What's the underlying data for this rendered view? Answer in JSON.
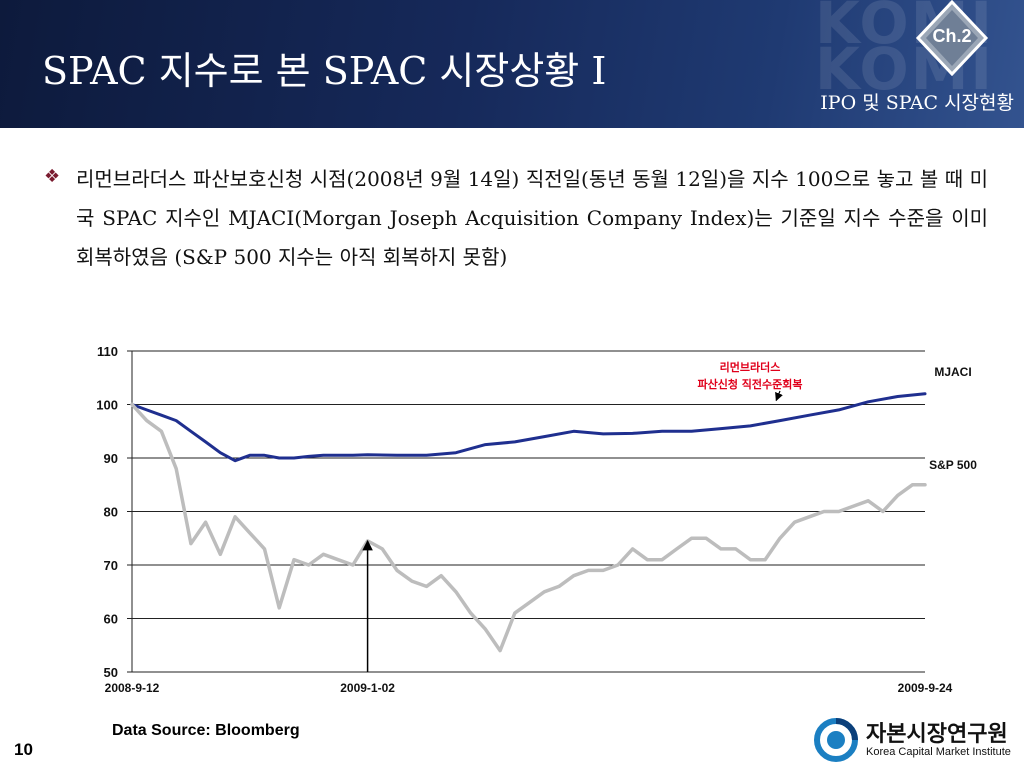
{
  "header": {
    "title": "SPAC 지수로 본 SPAC 시장상황 I",
    "subtitle": "IPO 및 SPAC 시장현황",
    "badge": "Ch.2"
  },
  "bullet": {
    "text": "리먼브라더스 파산보호신청 시점(2008년 9월 14일) 직전일(동년 동월 12일)을 지수 100으로 놓고 볼 때 미국 SPAC 지수인 MJACI(Morgan Joseph Acquisition Company Index)는 기준일 지수 수준을 이미 회복하였음 (S&P 500 지수는 아직 회복하지 못함)"
  },
  "chart_data": {
    "type": "line",
    "x_ticks": [
      "2008-9-12",
      "2009-1-02",
      "2009-9-24"
    ],
    "ylim": [
      50,
      110
    ],
    "y_ticks": [
      50,
      60,
      70,
      80,
      90,
      100,
      110
    ],
    "grid": true,
    "x_range": [
      "2008-09-12",
      "2009-09-24"
    ],
    "annotations": [
      {
        "text_line1": "리먼브라더스",
        "text_line2": "파산신청 직전수준회복",
        "color": "#e0001b",
        "points_to_x": "2009-07-01",
        "points_to_y": 100
      },
      {
        "text": "",
        "arrow_at_x": "2009-01-02",
        "arrow_to_y": 74.5
      }
    ],
    "series": [
      {
        "name": "MJACI",
        "color": "#1f2f8f",
        "points": [
          [
            "2008-09-12",
            100
          ],
          [
            "2008-09-19",
            99
          ],
          [
            "2008-09-26",
            98
          ],
          [
            "2008-10-03",
            97
          ],
          [
            "2008-10-10",
            95
          ],
          [
            "2008-10-17",
            93
          ],
          [
            "2008-10-24",
            91
          ],
          [
            "2008-10-31",
            89.5
          ],
          [
            "2008-11-07",
            90.5
          ],
          [
            "2008-11-14",
            90.5
          ],
          [
            "2008-11-21",
            90
          ],
          [
            "2008-11-28",
            90
          ],
          [
            "2008-12-05",
            90.3
          ],
          [
            "2008-12-12",
            90.5
          ],
          [
            "2008-12-19",
            90.5
          ],
          [
            "2008-12-26",
            90.5
          ],
          [
            "2009-01-02",
            90.6
          ],
          [
            "2009-01-16",
            90.5
          ],
          [
            "2009-01-30",
            90.5
          ],
          [
            "2009-02-13",
            91
          ],
          [
            "2009-02-27",
            92.5
          ],
          [
            "2009-03-13",
            93
          ],
          [
            "2009-03-27",
            94
          ],
          [
            "2009-04-10",
            95
          ],
          [
            "2009-04-24",
            94.5
          ],
          [
            "2009-05-08",
            94.6
          ],
          [
            "2009-05-22",
            95
          ],
          [
            "2009-06-05",
            95
          ],
          [
            "2009-06-19",
            95.5
          ],
          [
            "2009-07-03",
            96
          ],
          [
            "2009-07-17",
            97
          ],
          [
            "2009-07-31",
            98
          ],
          [
            "2009-08-14",
            99
          ],
          [
            "2009-08-28",
            100.5
          ],
          [
            "2009-09-11",
            101.5
          ],
          [
            "2009-09-24",
            102
          ]
        ]
      },
      {
        "name": "S&P 500",
        "color": "#bdbdbd",
        "points": [
          [
            "2008-09-12",
            100
          ],
          [
            "2008-09-19",
            97
          ],
          [
            "2008-09-26",
            95
          ],
          [
            "2008-10-03",
            88
          ],
          [
            "2008-10-10",
            74
          ],
          [
            "2008-10-17",
            78
          ],
          [
            "2008-10-24",
            72
          ],
          [
            "2008-10-31",
            79
          ],
          [
            "2008-11-07",
            76
          ],
          [
            "2008-11-14",
            73
          ],
          [
            "2008-11-21",
            62
          ],
          [
            "2008-11-28",
            71
          ],
          [
            "2008-12-05",
            70
          ],
          [
            "2008-12-12",
            72
          ],
          [
            "2008-12-19",
            71
          ],
          [
            "2008-12-26",
            70
          ],
          [
            "2009-01-02",
            74.5
          ],
          [
            "2009-01-09",
            73
          ],
          [
            "2009-01-16",
            69
          ],
          [
            "2009-01-23",
            67
          ],
          [
            "2009-01-30",
            66
          ],
          [
            "2009-02-06",
            68
          ],
          [
            "2009-02-13",
            65
          ],
          [
            "2009-02-20",
            61
          ],
          [
            "2009-02-27",
            58
          ],
          [
            "2009-03-06",
            54
          ],
          [
            "2009-03-13",
            61
          ],
          [
            "2009-03-20",
            63
          ],
          [
            "2009-03-27",
            65
          ],
          [
            "2009-04-03",
            66
          ],
          [
            "2009-04-10",
            68
          ],
          [
            "2009-04-17",
            69
          ],
          [
            "2009-04-24",
            69
          ],
          [
            "2009-05-01",
            70
          ],
          [
            "2009-05-08",
            73
          ],
          [
            "2009-05-15",
            71
          ],
          [
            "2009-05-22",
            71
          ],
          [
            "2009-05-29",
            73
          ],
          [
            "2009-06-05",
            75
          ],
          [
            "2009-06-12",
            75
          ],
          [
            "2009-06-19",
            73
          ],
          [
            "2009-06-26",
            73
          ],
          [
            "2009-07-03",
            71
          ],
          [
            "2009-07-10",
            71
          ],
          [
            "2009-07-17",
            75
          ],
          [
            "2009-07-24",
            78
          ],
          [
            "2009-07-31",
            79
          ],
          [
            "2009-08-07",
            80
          ],
          [
            "2009-08-14",
            80
          ],
          [
            "2009-08-21",
            81
          ],
          [
            "2009-08-28",
            82
          ],
          [
            "2009-09-04",
            80
          ],
          [
            "2009-09-11",
            83
          ],
          [
            "2009-09-18",
            85
          ],
          [
            "2009-09-24",
            85
          ]
        ]
      }
    ]
  },
  "footer": {
    "source": "Data Source: Bloomberg",
    "page": "10",
    "logo_ko": "자본시장연구원",
    "logo_en": "Korea Capital Market Institute"
  }
}
